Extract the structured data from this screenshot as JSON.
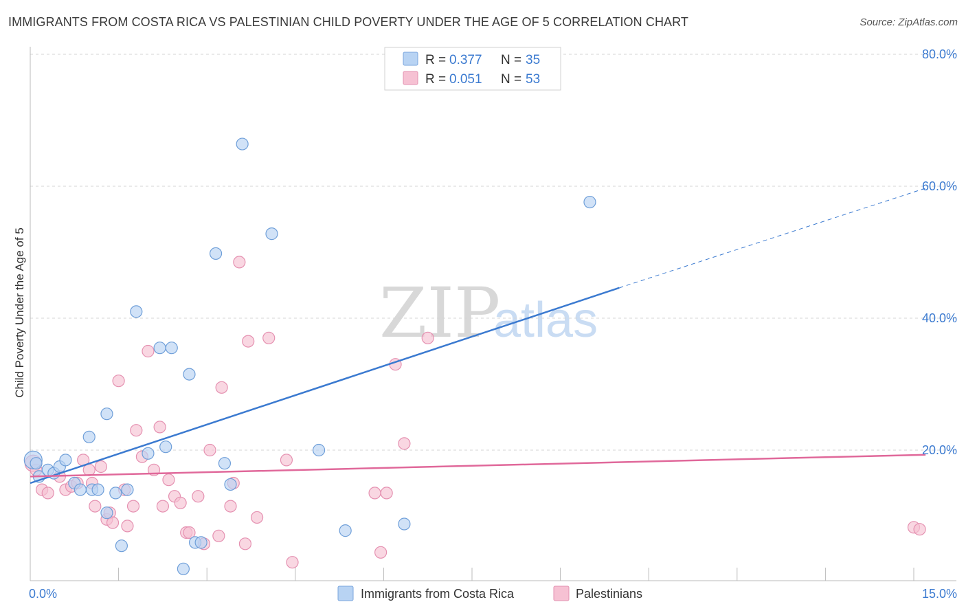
{
  "title": "IMMIGRANTS FROM COSTA RICA VS PALESTINIAN CHILD POVERTY UNDER THE AGE OF 5 CORRELATION CHART",
  "source": "Source: ZipAtlas.com",
  "watermark": {
    "zip": "ZIP",
    "atlas": "atlas"
  },
  "colors": {
    "blue": "#3b7ad0",
    "blue_fill": "#b8d3f3",
    "pink": "#e0689a",
    "pink_fill": "#f6c1d3",
    "grid": "#d5d5d5"
  },
  "legend": {
    "items": [
      {
        "r_label": "R =",
        "r_value": "0.377",
        "n_label": "N =",
        "n_value": "35"
      },
      {
        "r_label": "R =",
        "r_value": "0.051",
        "n_label": "N =",
        "n_value": "53"
      }
    ]
  },
  "chart_data": {
    "type": "scatter",
    "title": "IMMIGRANTS FROM COSTA RICA VS PALESTINIAN CHILD POVERTY UNDER THE AGE OF 5 CORRELATION CHART",
    "xlabel": "",
    "ylabel": "Child Poverty Under the Age of 5",
    "xlim": [
      0,
      15
    ],
    "ylim": [
      0,
      82
    ],
    "x_tick_labels": [
      {
        "value": 0,
        "label": "0.0%"
      },
      {
        "value": 15,
        "label": "15.0%"
      }
    ],
    "y_tick_labels": [
      {
        "value": 20,
        "label": "20.0%"
      },
      {
        "value": 40,
        "label": "40.0%"
      },
      {
        "value": 60,
        "label": "60.0%"
      },
      {
        "value": 80,
        "label": "80.0%"
      }
    ],
    "x_minor_ticks": [
      1.5,
      3.0,
      4.5,
      6.0,
      7.5,
      9.0,
      10.5,
      12.0,
      13.5,
      15.0
    ],
    "series": [
      {
        "name": "Immigrants from Costa Rica",
        "color": "blue",
        "points": [
          [
            0.05,
            18.5
          ],
          [
            0.1,
            18.0
          ],
          [
            0.15,
            16.0
          ],
          [
            0.3,
            17.0
          ],
          [
            0.4,
            16.5
          ],
          [
            0.5,
            17.5
          ],
          [
            0.6,
            18.5
          ],
          [
            0.75,
            15.0
          ],
          [
            0.85,
            14.0
          ],
          [
            1.05,
            14.0
          ],
          [
            1.15,
            14.0
          ],
          [
            1.3,
            10.5
          ],
          [
            1.45,
            13.5
          ],
          [
            1.55,
            5.5
          ],
          [
            1.65,
            14.0
          ],
          [
            1.0,
            22.0
          ],
          [
            1.3,
            25.5
          ],
          [
            1.8,
            41.0
          ],
          [
            2.0,
            19.5
          ],
          [
            2.2,
            35.5
          ],
          [
            2.3,
            20.5
          ],
          [
            2.4,
            35.5
          ],
          [
            2.6,
            2.0
          ],
          [
            2.7,
            31.5
          ],
          [
            2.8,
            6.0
          ],
          [
            2.9,
            6.0
          ],
          [
            3.15,
            49.8
          ],
          [
            3.3,
            18.0
          ],
          [
            3.4,
            14.8
          ],
          [
            3.6,
            66.4
          ],
          [
            4.1,
            52.8
          ],
          [
            4.9,
            20.0
          ],
          [
            5.35,
            7.8
          ],
          [
            6.35,
            8.8
          ],
          [
            9.5,
            57.6
          ]
        ]
      },
      {
        "name": "Palestinians",
        "color": "pink",
        "points": [
          [
            0.05,
            18.0
          ],
          [
            0.1,
            17.0
          ],
          [
            0.2,
            14.0
          ],
          [
            0.3,
            13.5
          ],
          [
            0.5,
            16.0
          ],
          [
            0.6,
            14.0
          ],
          [
            0.7,
            14.5
          ],
          [
            0.8,
            15.0
          ],
          [
            0.9,
            18.5
          ],
          [
            1.0,
            17.0
          ],
          [
            1.05,
            15.0
          ],
          [
            1.1,
            11.5
          ],
          [
            1.2,
            17.5
          ],
          [
            1.3,
            9.5
          ],
          [
            1.35,
            10.5
          ],
          [
            1.4,
            9.0
          ],
          [
            1.5,
            30.5
          ],
          [
            1.6,
            14.0
          ],
          [
            1.65,
            8.5
          ],
          [
            1.75,
            11.5
          ],
          [
            1.8,
            23.0
          ],
          [
            1.9,
            19.0
          ],
          [
            2.0,
            35.0
          ],
          [
            2.1,
            17.0
          ],
          [
            2.2,
            23.5
          ],
          [
            2.25,
            11.5
          ],
          [
            2.35,
            15.5
          ],
          [
            2.45,
            13.0
          ],
          [
            2.55,
            12.0
          ],
          [
            2.65,
            7.5
          ],
          [
            2.7,
            7.5
          ],
          [
            2.85,
            13.0
          ],
          [
            2.95,
            5.8
          ],
          [
            3.05,
            20.0
          ],
          [
            3.2,
            7.0
          ],
          [
            3.25,
            29.5
          ],
          [
            3.4,
            11.5
          ],
          [
            3.45,
            15.0
          ],
          [
            3.55,
            48.5
          ],
          [
            3.65,
            5.8
          ],
          [
            3.7,
            36.5
          ],
          [
            3.85,
            9.8
          ],
          [
            4.05,
            37.0
          ],
          [
            4.35,
            18.5
          ],
          [
            4.45,
            3.0
          ],
          [
            5.85,
            13.5
          ],
          [
            5.95,
            4.5
          ],
          [
            6.05,
            13.5
          ],
          [
            6.2,
            33.0
          ],
          [
            6.35,
            21.0
          ],
          [
            6.75,
            37.0
          ],
          [
            15.0,
            8.3
          ],
          [
            15.1,
            8.0
          ]
        ]
      }
    ],
    "trendlines": [
      {
        "series": "Immigrants from Costa Rica",
        "x0": 0,
        "y0": 15.0,
        "x1": 10.0,
        "y1": 44.6,
        "dashed_to_x": 15.2,
        "dashed_to_y": 59.7
      },
      {
        "series": "Palestinians",
        "x0": 0,
        "y0": 16.0,
        "x1": 15.2,
        "y1": 19.3
      }
    ],
    "legend_position": "top-center",
    "grid": true
  },
  "bottom_legend": [
    {
      "label": "Immigrants from Costa Rica",
      "color": "blue"
    },
    {
      "label": "Palestinians",
      "color": "pink"
    }
  ]
}
